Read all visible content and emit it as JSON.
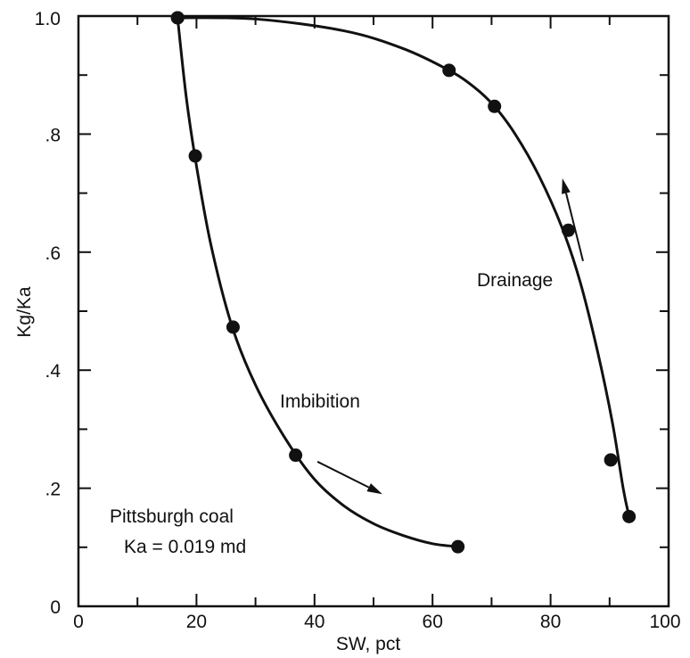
{
  "chart_data": {
    "type": "scatter",
    "title": "",
    "xlabel": "SW, pct",
    "ylabel": "Kg/Ka",
    "xlim": [
      0,
      100
    ],
    "ylim": [
      0,
      1.0
    ],
    "x_ticks": [
      0,
      20,
      40,
      60,
      80,
      100
    ],
    "x_tick_labels": [
      "0",
      "20",
      "40",
      "60",
      "80",
      "100"
    ],
    "y_ticks": [
      0,
      0.2,
      0.4,
      0.6,
      0.8,
      1.0
    ],
    "y_tick_labels": [
      "0",
      ".2",
      ".4",
      ".6",
      ".8",
      "1.0"
    ],
    "grid": false,
    "series": [
      {
        "name": "Imbibition",
        "x": [
          16.8,
          19.8,
          26.2,
          36.8,
          64.3
        ],
        "y": [
          0.997,
          0.763,
          0.473,
          0.256,
          0.101
        ],
        "curve_x": [
          16.8,
          18.3,
          20.1,
          22.5,
          26.0,
          30.0,
          35.0,
          40.0,
          45.0,
          50.0,
          55.0,
          60.0,
          64.3
        ],
        "curve_y": [
          0.997,
          0.86,
          0.74,
          0.61,
          0.475,
          0.375,
          0.285,
          0.215,
          0.17,
          0.14,
          0.12,
          0.106,
          0.101
        ]
      },
      {
        "name": "Drainage",
        "x": [
          16.8,
          62.8,
          70.5,
          83.0,
          90.2,
          93.3
        ],
        "y": [
          0.997,
          0.908,
          0.847,
          0.637,
          0.248,
          0.152
        ],
        "curve_x": [
          16.8,
          30.0,
          45.0,
          55.0,
          62.8,
          67.0,
          70.5,
          74.0,
          78.0,
          82.0,
          85.0,
          88.0,
          90.5,
          92.3,
          93.3
        ],
        "curve_y": [
          0.997,
          0.995,
          0.975,
          0.945,
          0.908,
          0.88,
          0.847,
          0.8,
          0.73,
          0.64,
          0.55,
          0.43,
          0.31,
          0.2,
          0.152
        ]
      }
    ],
    "annotations": {
      "imbibition_label": "Imbibition",
      "drainage_label": "Drainage",
      "coal_label": "Pittsburgh coal",
      "ka_label": "Ka = 0.019 md"
    },
    "arrows": [
      {
        "series": "Imbibition",
        "from": [
          40.5,
          0.245
        ],
        "to": [
          51.5,
          0.19
        ]
      },
      {
        "series": "Drainage",
        "from": [
          85.5,
          0.585
        ],
        "to": [
          82.0,
          0.725
        ]
      }
    ],
    "colors": {
      "ink": "#111111",
      "background": "#ffffff"
    }
  }
}
